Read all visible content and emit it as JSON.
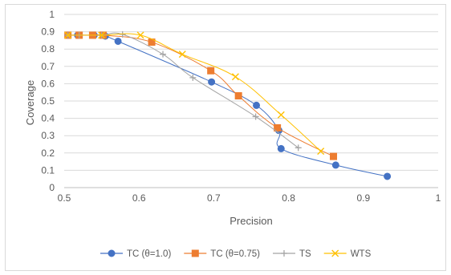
{
  "chart_data": {
    "type": "scatter",
    "title": "",
    "xlabel": "Precision",
    "ylabel": "Coverage",
    "xlim": [
      0.5,
      1
    ],
    "ylim": [
      0,
      1
    ],
    "x_ticks": [
      "0.5",
      "0.6",
      "0.7",
      "0.8",
      "0.9",
      "1"
    ],
    "y_ticks": [
      "0",
      "0.1",
      "0.2",
      "0.3",
      "0.4",
      "0.5",
      "0.6",
      "0.7",
      "0.8",
      "0.9",
      "1"
    ],
    "grid": "horizontal",
    "legend_position": "bottom",
    "series": [
      {
        "name": "TC (θ=1.0)",
        "color": "#4472C4",
        "marker": "circle",
        "x": [
          0.505,
          0.518,
          0.54,
          0.555,
          0.572,
          0.697,
          0.757,
          0.787,
          0.79,
          0.863,
          0.932
        ],
        "y": [
          0.88,
          0.88,
          0.88,
          0.875,
          0.845,
          0.61,
          0.475,
          0.33,
          0.225,
          0.13,
          0.065
        ]
      },
      {
        "name": "TC (θ=0.75)",
        "color": "#ED7D31",
        "marker": "square",
        "x": [
          0.505,
          0.52,
          0.538,
          0.552,
          0.617,
          0.696,
          0.733,
          0.785,
          0.86
        ],
        "y": [
          0.88,
          0.88,
          0.88,
          0.88,
          0.84,
          0.675,
          0.53,
          0.345,
          0.18
        ]
      },
      {
        "name": "TS",
        "color": "#A5A5A5",
        "marker": "plus",
        "x": [
          0.505,
          0.52,
          0.55,
          0.578,
          0.632,
          0.672,
          0.756,
          0.813
        ],
        "y": [
          0.88,
          0.88,
          0.88,
          0.885,
          0.77,
          0.635,
          0.41,
          0.23
        ]
      },
      {
        "name": "WTS",
        "color": "#FFC000",
        "marker": "x",
        "x": [
          0.505,
          0.55,
          0.602,
          0.658,
          0.729,
          0.79,
          0.843
        ],
        "y": [
          0.88,
          0.88,
          0.88,
          0.77,
          0.64,
          0.42,
          0.21
        ]
      }
    ]
  }
}
